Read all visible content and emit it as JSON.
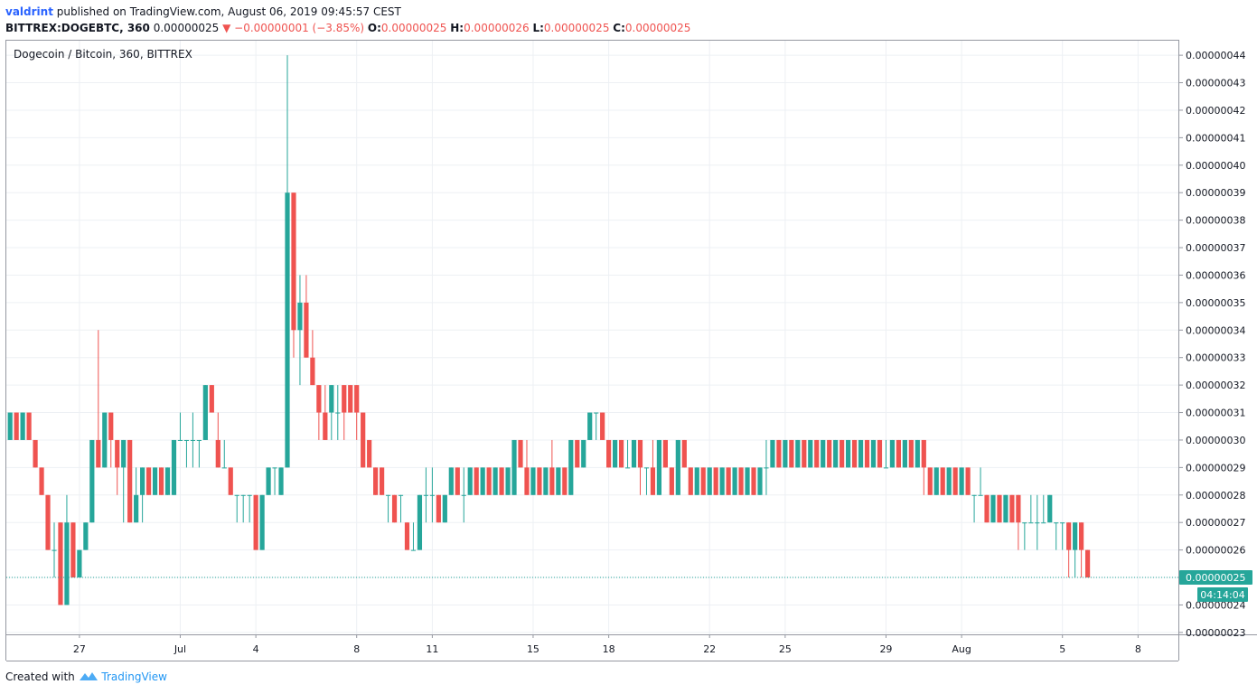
{
  "header": {
    "user": "valdrint",
    "published": "published on TradingView.com, August 06, 2019 09:45:57 CEST",
    "symbol": "BITTREX:DOGEBTC, 360",
    "price": "0.00000025",
    "arrow": "▼",
    "change": "−0.00000001 (−3.85%)",
    "o_label": "O:",
    "o": "0.00000025",
    "h_label": "H:",
    "h": "0.00000026",
    "l_label": "L:",
    "l": "0.00000025",
    "c_label": "C:",
    "c": "0.00000025"
  },
  "footer": {
    "created": "Created with",
    "brand": "TradingView"
  },
  "chart_data": {
    "type": "candlestick",
    "xlim": [
      -2.9,
      43.6
    ],
    "ylim": [
      2.293e-07,
      4.453e-07
    ],
    "grid": true,
    "xticks": [
      {
        "value": 0,
        "label": "27"
      },
      {
        "value": 4,
        "label": "Jul"
      },
      {
        "value": 7,
        "label": "4"
      },
      {
        "value": 11,
        "label": "8"
      },
      {
        "value": 14,
        "label": "11"
      },
      {
        "value": 18,
        "label": "15"
      },
      {
        "value": 21,
        "label": "18"
      },
      {
        "value": 25,
        "label": "22"
      },
      {
        "value": 28,
        "label": "25"
      },
      {
        "value": 32,
        "label": "29"
      },
      {
        "value": 35,
        "label": "Aug"
      },
      {
        "value": 39,
        "label": "5"
      },
      {
        "value": 42,
        "label": "8"
      }
    ],
    "yticks": [
      {
        "value": 2.3e-07,
        "label": "0.00000023"
      },
      {
        "value": 2.4e-07,
        "label": "0.00000024"
      },
      {
        "value": 2.5e-07,
        "label": "0.00000025"
      },
      {
        "value": 2.6e-07,
        "label": "0.00000026"
      },
      {
        "value": 2.7e-07,
        "label": "0.00000027"
      },
      {
        "value": 2.8e-07,
        "label": "0.00000028"
      },
      {
        "value": 2.9e-07,
        "label": "0.00000029"
      },
      {
        "value": 3e-07,
        "label": "0.00000030"
      },
      {
        "value": 3.1e-07,
        "label": "0.00000031"
      },
      {
        "value": 3.2e-07,
        "label": "0.00000032"
      },
      {
        "value": 3.3e-07,
        "label": "0.00000033"
      },
      {
        "value": 3.4e-07,
        "label": "0.00000034"
      },
      {
        "value": 3.5e-07,
        "label": "0.00000035"
      },
      {
        "value": 3.6e-07,
        "label": "0.00000036"
      },
      {
        "value": 3.7e-07,
        "label": "0.00000037"
      },
      {
        "value": 3.8e-07,
        "label": "0.00000038"
      },
      {
        "value": 3.9e-07,
        "label": "0.00000039"
      },
      {
        "value": 4e-07,
        "label": "0.00000040"
      },
      {
        "value": 4.1e-07,
        "label": "0.00000041"
      },
      {
        "value": 4.2e-07,
        "label": "0.00000042"
      },
      {
        "value": 4.3e-07,
        "label": "0.00000043"
      },
      {
        "value": 4.4e-07,
        "label": "0.00000044"
      }
    ],
    "last_price": {
      "value": 2.5e-07,
      "label": "0.00000025"
    },
    "countdown": "04:14:04",
    "series": [
      {
        "name": "Dogecoin / Bitcoin, 360, BITTREX",
        "up_color": "#26a69a",
        "down_color": "#ef5350",
        "x": [
          -2.75,
          -2.5,
          -2.25,
          -2,
          -1.75,
          -1.5,
          -1.25,
          -1,
          -0.75,
          -0.5,
          -0.25,
          0,
          0.25,
          0.5,
          0.75,
          1,
          1.25,
          1.5,
          1.75,
          2,
          2.25,
          2.5,
          2.75,
          3,
          3.25,
          3.5,
          3.75,
          4,
          4.25,
          4.5,
          4.75,
          5,
          5.25,
          5.5,
          5.75,
          6,
          6.25,
          6.5,
          6.75,
          7,
          7.25,
          7.5,
          7.75,
          8,
          8.25,
          8.5,
          8.75,
          9,
          9.25,
          9.5,
          9.75,
          10,
          10.25,
          10.5,
          10.75,
          11,
          11.25,
          11.5,
          11.75,
          12,
          12.25,
          12.5,
          12.75,
          13,
          13.25,
          13.5,
          13.75,
          14,
          14.25,
          14.5,
          14.75,
          15,
          15.25,
          15.5,
          15.75,
          16,
          16.25,
          16.5,
          16.75,
          17,
          17.25,
          17.5,
          17.75,
          18,
          18.25,
          18.5,
          18.75,
          19,
          19.25,
          19.5,
          19.75,
          20,
          20.25,
          20.5,
          20.75,
          21,
          21.25,
          21.5,
          21.75,
          22,
          22.25,
          22.5,
          22.75,
          23,
          23.25,
          23.5,
          23.75,
          24,
          24.25,
          24.5,
          24.75,
          25,
          25.25,
          25.5,
          25.75,
          26,
          26.25,
          26.5,
          26.75,
          27,
          27.25,
          27.5,
          27.75,
          28,
          28.25,
          28.5,
          28.75,
          29,
          29.25,
          29.5,
          29.75,
          30,
          30.25,
          30.5,
          30.75,
          31,
          31.25,
          31.5,
          31.75,
          32,
          32.25,
          32.5,
          32.75,
          33,
          33.25,
          33.5,
          33.75,
          34,
          34.25,
          34.5,
          34.75,
          35,
          35.25,
          35.5,
          35.75,
          36,
          36.25,
          36.5,
          36.75,
          37,
          37.25,
          37.5,
          37.75,
          38,
          38.25,
          38.5,
          38.75,
          39,
          39.25,
          39.5,
          39.75,
          40
        ],
        "open": [
          3e-07,
          3.1e-07,
          3e-07,
          3.1e-07,
          3e-07,
          2.9e-07,
          2.8e-07,
          2.6e-07,
          2.7e-07,
          2.4e-07,
          2.7e-07,
          2.5e-07,
          2.6e-07,
          2.7e-07,
          3e-07,
          2.9e-07,
          3.1e-07,
          3e-07,
          2.9e-07,
          3e-07,
          2.7e-07,
          2.8e-07,
          2.9e-07,
          2.8e-07,
          2.9e-07,
          2.8e-07,
          2.8e-07,
          3e-07,
          3e-07,
          3e-07,
          3e-07,
          3e-07,
          3.2e-07,
          3e-07,
          2.9e-07,
          2.9e-07,
          2.8e-07,
          2.8e-07,
          2.8e-07,
          2.8e-07,
          2.6e-07,
          2.8e-07,
          2.9e-07,
          2.8e-07,
          2.9e-07,
          3.9e-07,
          3.4e-07,
          3.5e-07,
          3.3e-07,
          3.2e-07,
          3.1e-07,
          3.1e-07,
          3.1e-07,
          3.2e-07,
          3.2e-07,
          3.2e-07,
          3.1e-07,
          3e-07,
          2.9e-07,
          2.9e-07,
          2.8e-07,
          2.8e-07,
          2.8e-07,
          2.7e-07,
          2.6e-07,
          2.6e-07,
          2.8e-07,
          2.8e-07,
          2.8e-07,
          2.7e-07,
          2.8e-07,
          2.9e-07,
          2.8e-07,
          2.8e-07,
          2.9e-07,
          2.8e-07,
          2.9e-07,
          2.8e-07,
          2.9e-07,
          2.8e-07,
          2.8e-07,
          3e-07,
          2.9e-07,
          2.8e-07,
          2.9e-07,
          2.8e-07,
          2.9e-07,
          2.8e-07,
          2.9e-07,
          2.8e-07,
          3e-07,
          2.9e-07,
          3e-07,
          3.1e-07,
          3.1e-07,
          3e-07,
          2.9e-07,
          3e-07,
          2.9e-07,
          2.9e-07,
          3e-07,
          2.9e-07,
          2.9e-07,
          2.8e-07,
          3e-07,
          2.9e-07,
          2.8e-07,
          3e-07,
          2.9e-07,
          2.8e-07,
          2.9e-07,
          2.8e-07,
          2.9e-07,
          2.8e-07,
          2.9e-07,
          2.8e-07,
          2.9e-07,
          2.8e-07,
          2.9e-07,
          2.8e-07,
          2.9e-07,
          2.9e-07,
          3e-07,
          2.9e-07,
          3e-07,
          2.9e-07,
          3e-07,
          2.9e-07,
          3e-07,
          2.9e-07,
          3e-07,
          2.9e-07,
          3e-07,
          2.9e-07,
          3e-07,
          2.9e-07,
          3e-07,
          2.9e-07,
          3e-07,
          2.9e-07,
          2.9e-07,
          3e-07,
          2.9e-07,
          3e-07,
          2.9e-07,
          3e-07,
          2.9e-07,
          2.8e-07,
          2.9e-07,
          2.8e-07,
          2.9e-07,
          2.8e-07,
          2.9e-07,
          2.8e-07,
          2.8e-07,
          2.8e-07,
          2.7e-07,
          2.8e-07,
          2.7e-07,
          2.8e-07,
          2.8e-07,
          2.7e-07,
          2.7e-07,
          2.7e-07,
          2.7e-07,
          2.7e-07,
          2.7e-07,
          2.7e-07,
          2.7e-07,
          2.6e-07,
          2.7e-07,
          2.6e-07
        ],
        "high": [
          3.1e-07,
          3.1e-07,
          3.1e-07,
          3.1e-07,
          3e-07,
          2.9e-07,
          2.8e-07,
          2.7e-07,
          2.7e-07,
          2.8e-07,
          2.7e-07,
          2.6e-07,
          2.7e-07,
          3e-07,
          3.4e-07,
          3.1e-07,
          3.1e-07,
          3e-07,
          3e-07,
          3e-07,
          2.9e-07,
          2.9e-07,
          2.9e-07,
          2.9e-07,
          2.9e-07,
          2.9e-07,
          3e-07,
          3.1e-07,
          3e-07,
          3.1e-07,
          3e-07,
          3.2e-07,
          3.2e-07,
          3.1e-07,
          3e-07,
          2.9e-07,
          2.8e-07,
          2.8e-07,
          2.8e-07,
          2.8e-07,
          2.8e-07,
          2.9e-07,
          2.9e-07,
          2.9e-07,
          4.4e-07,
          3.9e-07,
          3.6e-07,
          3.6e-07,
          3.4e-07,
          3.2e-07,
          3.2e-07,
          3.2e-07,
          3.2e-07,
          3.2e-07,
          3.2e-07,
          3.2e-07,
          3.1e-07,
          3e-07,
          2.9e-07,
          2.9e-07,
          2.8e-07,
          2.8e-07,
          2.8e-07,
          2.7e-07,
          2.7e-07,
          2.8e-07,
          2.9e-07,
          2.9e-07,
          2.8e-07,
          2.8e-07,
          2.9e-07,
          2.9e-07,
          2.9e-07,
          2.9e-07,
          2.9e-07,
          2.9e-07,
          2.9e-07,
          2.9e-07,
          2.9e-07,
          2.9e-07,
          3e-07,
          3e-07,
          3e-07,
          2.9e-07,
          2.9e-07,
          2.9e-07,
          3e-07,
          2.9e-07,
          2.9e-07,
          3e-07,
          3e-07,
          3e-07,
          3.1e-07,
          3.1e-07,
          3.1e-07,
          3e-07,
          3e-07,
          3e-07,
          3e-07,
          3e-07,
          3e-07,
          2.9e-07,
          3e-07,
          3e-07,
          3e-07,
          2.9e-07,
          3e-07,
          3e-07,
          2.9e-07,
          2.9e-07,
          2.9e-07,
          2.9e-07,
          2.9e-07,
          2.9e-07,
          2.9e-07,
          2.9e-07,
          2.9e-07,
          2.9e-07,
          2.9e-07,
          2.9e-07,
          3e-07,
          3e-07,
          3e-07,
          3e-07,
          3e-07,
          3e-07,
          3e-07,
          3e-07,
          3e-07,
          3e-07,
          3e-07,
          3e-07,
          3e-07,
          3e-07,
          3e-07,
          3e-07,
          3e-07,
          3e-07,
          3e-07,
          3e-07,
          3e-07,
          3e-07,
          3e-07,
          3e-07,
          3e-07,
          3e-07,
          2.9e-07,
          2.9e-07,
          2.9e-07,
          2.9e-07,
          2.9e-07,
          2.9e-07,
          2.9e-07,
          2.8e-07,
          2.9e-07,
          2.8e-07,
          2.8e-07,
          2.8e-07,
          2.8e-07,
          2.8e-07,
          2.8e-07,
          2.7e-07,
          2.8e-07,
          2.8e-07,
          2.8e-07,
          2.8e-07,
          2.7e-07,
          2.7e-07,
          2.7e-07,
          2.7e-07,
          2.7e-07,
          2.6e-07
        ],
        "low": [
          3e-07,
          3e-07,
          3e-07,
          3e-07,
          2.9e-07,
          2.8e-07,
          2.6e-07,
          2.5e-07,
          2.4e-07,
          2.4e-07,
          2.5e-07,
          2.5e-07,
          2.6e-07,
          2.7e-07,
          2.9e-07,
          2.9e-07,
          2.9e-07,
          2.8e-07,
          2.7e-07,
          2.7e-07,
          2.7e-07,
          2.7e-07,
          2.8e-07,
          2.8e-07,
          2.8e-07,
          2.8e-07,
          2.8e-07,
          3e-07,
          2.9e-07,
          2.9e-07,
          2.9e-07,
          3e-07,
          3.1e-07,
          2.9e-07,
          2.9e-07,
          2.8e-07,
          2.7e-07,
          2.7e-07,
          2.7e-07,
          2.6e-07,
          2.6e-07,
          2.8e-07,
          2.8e-07,
          2.8e-07,
          2.9e-07,
          3.3e-07,
          3.2e-07,
          3.3e-07,
          3.2e-07,
          3e-07,
          3e-07,
          3e-07,
          3e-07,
          3e-07,
          3.1e-07,
          3e-07,
          2.9e-07,
          2.9e-07,
          2.8e-07,
          2.8e-07,
          2.7e-07,
          2.7e-07,
          2.7e-07,
          2.6e-07,
          2.6e-07,
          2.6e-07,
          2.7e-07,
          2.7e-07,
          2.7e-07,
          2.7e-07,
          2.8e-07,
          2.8e-07,
          2.7e-07,
          2.8e-07,
          2.8e-07,
          2.8e-07,
          2.8e-07,
          2.8e-07,
          2.8e-07,
          2.8e-07,
          2.8e-07,
          2.9e-07,
          2.8e-07,
          2.8e-07,
          2.8e-07,
          2.8e-07,
          2.8e-07,
          2.8e-07,
          2.8e-07,
          2.8e-07,
          2.9e-07,
          2.9e-07,
          3e-07,
          3e-07,
          3e-07,
          2.9e-07,
          2.9e-07,
          2.9e-07,
          2.9e-07,
          2.9e-07,
          2.8e-07,
          2.8e-07,
          2.8e-07,
          2.8e-07,
          2.9e-07,
          2.8e-07,
          2.8e-07,
          2.9e-07,
          2.8e-07,
          2.8e-07,
          2.8e-07,
          2.8e-07,
          2.8e-07,
          2.8e-07,
          2.8e-07,
          2.8e-07,
          2.8e-07,
          2.8e-07,
          2.8e-07,
          2.8e-07,
          2.8e-07,
          2.9e-07,
          2.9e-07,
          2.9e-07,
          2.9e-07,
          2.9e-07,
          2.9e-07,
          2.9e-07,
          2.9e-07,
          2.9e-07,
          2.9e-07,
          2.9e-07,
          2.9e-07,
          2.9e-07,
          2.9e-07,
          2.9e-07,
          2.9e-07,
          2.9e-07,
          2.9e-07,
          2.9e-07,
          2.9e-07,
          2.9e-07,
          2.9e-07,
          2.9e-07,
          2.9e-07,
          2.8e-07,
          2.8e-07,
          2.8e-07,
          2.8e-07,
          2.8e-07,
          2.8e-07,
          2.8e-07,
          2.8e-07,
          2.7e-07,
          2.8e-07,
          2.7e-07,
          2.7e-07,
          2.7e-07,
          2.7e-07,
          2.7e-07,
          2.6e-07,
          2.6e-07,
          2.7e-07,
          2.6e-07,
          2.7e-07,
          2.7e-07,
          2.6e-07,
          2.6e-07,
          2.5e-07,
          2.5e-07,
          2.5e-07,
          2.5e-07
        ],
        "close": [
          3.1e-07,
          3e-07,
          3.1e-07,
          3e-07,
          2.9e-07,
          2.8e-07,
          2.6e-07,
          2.6e-07,
          2.4e-07,
          2.7e-07,
          2.5e-07,
          2.6e-07,
          2.7e-07,
          3e-07,
          2.9e-07,
          3.1e-07,
          3e-07,
          2.9e-07,
          3e-07,
          2.7e-07,
          2.8e-07,
          2.9e-07,
          2.8e-07,
          2.9e-07,
          2.8e-07,
          2.9e-07,
          3e-07,
          3e-07,
          3e-07,
          3e-07,
          3e-07,
          3.2e-07,
          3.1e-07,
          2.9e-07,
          2.9e-07,
          2.8e-07,
          2.8e-07,
          2.8e-07,
          2.8e-07,
          2.6e-07,
          2.8e-07,
          2.9e-07,
          2.9e-07,
          2.9e-07,
          3.9e-07,
          3.4e-07,
          3.5e-07,
          3.3e-07,
          3.2e-07,
          3.1e-07,
          3e-07,
          3.2e-07,
          3.1e-07,
          3.1e-07,
          3.1e-07,
          3.1e-07,
          2.9e-07,
          2.9e-07,
          2.8e-07,
          2.8e-07,
          2.8e-07,
          2.7e-07,
          2.8e-07,
          2.6e-07,
          2.6e-07,
          2.8e-07,
          2.8e-07,
          2.8e-07,
          2.7e-07,
          2.8e-07,
          2.9e-07,
          2.8e-07,
          2.8e-07,
          2.9e-07,
          2.8e-07,
          2.9e-07,
          2.8e-07,
          2.9e-07,
          2.8e-07,
          2.9e-07,
          3e-07,
          2.9e-07,
          2.8e-07,
          2.9e-07,
          2.8e-07,
          2.9e-07,
          2.8e-07,
          2.9e-07,
          2.8e-07,
          3e-07,
          2.9e-07,
          3e-07,
          3.1e-07,
          3.1e-07,
          3e-07,
          2.9e-07,
          3e-07,
          2.9e-07,
          2.9e-07,
          3e-07,
          2.9e-07,
          2.9e-07,
          2.8e-07,
          3e-07,
          2.9e-07,
          2.8e-07,
          3e-07,
          2.9e-07,
          2.8e-07,
          2.9e-07,
          2.8e-07,
          2.9e-07,
          2.8e-07,
          2.9e-07,
          2.8e-07,
          2.9e-07,
          2.8e-07,
          2.9e-07,
          2.8e-07,
          2.9e-07,
          2.9e-07,
          3e-07,
          2.9e-07,
          3e-07,
          2.9e-07,
          3e-07,
          2.9e-07,
          3e-07,
          2.9e-07,
          3e-07,
          2.9e-07,
          3e-07,
          2.9e-07,
          3e-07,
          2.9e-07,
          3e-07,
          2.9e-07,
          3e-07,
          2.9e-07,
          2.9e-07,
          3e-07,
          2.9e-07,
          3e-07,
          2.9e-07,
          3e-07,
          2.9e-07,
          2.8e-07,
          2.9e-07,
          2.8e-07,
          2.9e-07,
          2.8e-07,
          2.9e-07,
          2.8e-07,
          2.8e-07,
          2.8e-07,
          2.7e-07,
          2.8e-07,
          2.7e-07,
          2.8e-07,
          2.7e-07,
          2.7e-07,
          2.7e-07,
          2.7e-07,
          2.7e-07,
          2.7e-07,
          2.8e-07,
          2.7e-07,
          2.7e-07,
          2.6e-07,
          2.7e-07,
          2.6e-07,
          2.5e-07
        ]
      }
    ]
  }
}
